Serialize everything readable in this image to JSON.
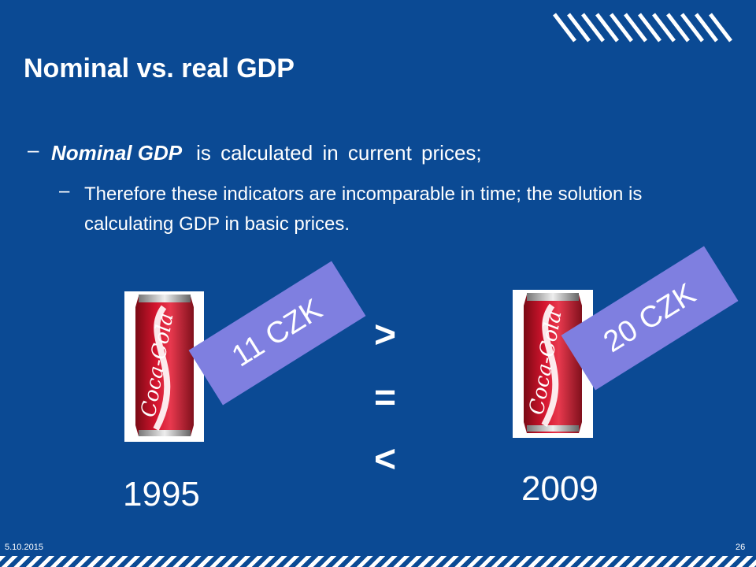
{
  "slide": {
    "title": "Nominal vs. real GDP",
    "bullet1": {
      "dash": "–",
      "emphasis": "Nominal GDP",
      "text": "is calculated in current prices;"
    },
    "bullet2": {
      "dash": "–",
      "text": "Therefore these indicators are incomparable in time; the solution is calculating GDP in basic prices."
    },
    "items": [
      {
        "image": "coca-cola-can",
        "price": "11 CZK",
        "year": "1995"
      },
      {
        "image": "coca-cola-can",
        "price": "20 CZK",
        "year": "2009"
      }
    ],
    "operators": {
      "greater": ">",
      "equal": "=",
      "less": "<"
    },
    "footer": {
      "date": "5.10.2015",
      "page": "26"
    },
    "colors": {
      "background": "#0b4a94",
      "price_tag": "#7f7fe0",
      "can_red": "#c8102e",
      "text": "#ffffff"
    }
  }
}
